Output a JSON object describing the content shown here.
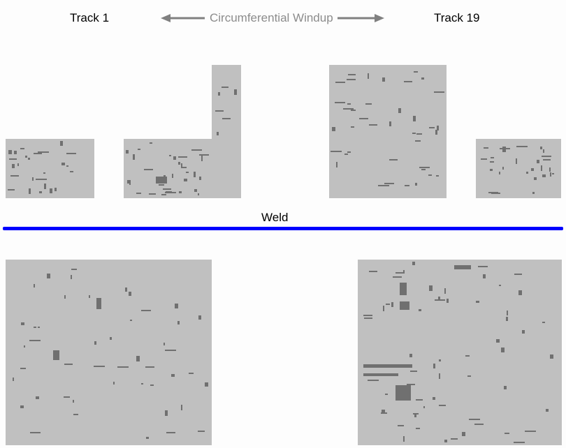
{
  "header": {
    "track_start": "Track 1",
    "track_end": "Track 19",
    "windup_label": "Circumferential Windup"
  },
  "weld_label": "Weld",
  "colors": {
    "background": "#fdfdfd",
    "panel": "#c0c0c0",
    "defect": "#707070",
    "weld_line": "#0000ff",
    "arrow": "#808080",
    "text": "#000000",
    "windup_text": "#8c8c8c"
  }
}
